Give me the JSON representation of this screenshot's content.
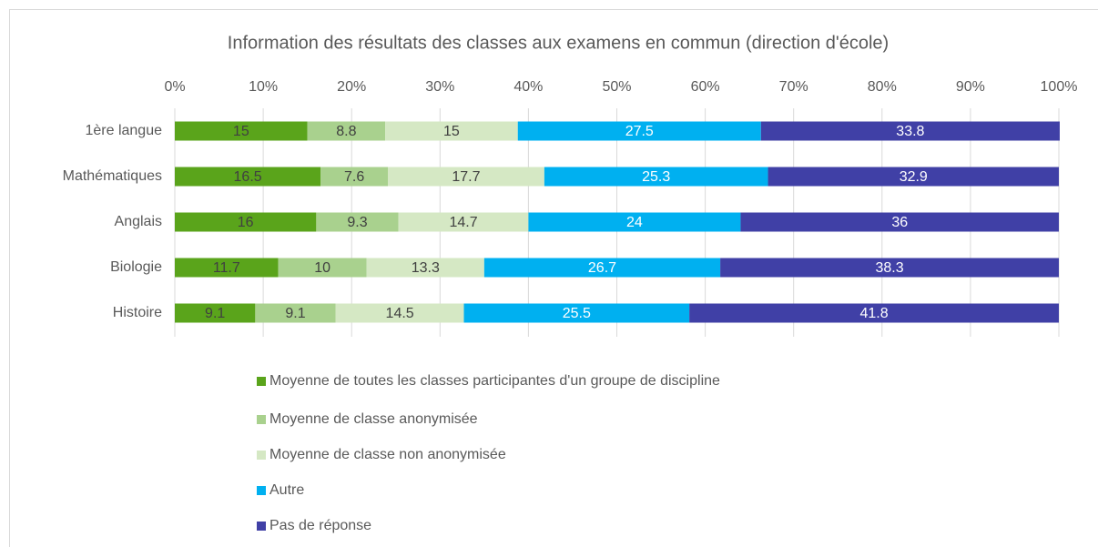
{
  "chart_data": {
    "type": "stacked_bar_horizontal",
    "title": "Information des résultats des classes aux examens en commun (direction d'école)",
    "categories": [
      "1ère langue",
      "Mathématiques",
      "Anglais",
      "Biologie",
      "Histoire"
    ],
    "series": [
      {
        "name": "Moyenne de toutes les classes participantes d'un groupe de discipline",
        "color": "#5aa41b",
        "values": [
          15,
          16.5,
          16,
          11.7,
          9.1
        ]
      },
      {
        "name": "Moyenne de classe anonymisée",
        "color": "#a9d18e",
        "values": [
          8.8,
          7.6,
          9.3,
          10,
          9.1
        ]
      },
      {
        "name": "Moyenne de classe non anonymisée",
        "color": "#d5e8c4",
        "values": [
          15,
          17.7,
          14.7,
          13.3,
          14.5
        ]
      },
      {
        "name": "Autre",
        "color": "#00b0f0",
        "values": [
          27.5,
          25.3,
          24,
          26.7,
          25.5
        ]
      },
      {
        "name": "Pas de réponse",
        "color": "#4040a6",
        "values": [
          33.8,
          32.9,
          36,
          38.3,
          41.8
        ]
      }
    ],
    "xlim": [
      0,
      100
    ],
    "xticks": [
      {
        "value": 0,
        "label": "0%"
      },
      {
        "value": 10,
        "label": "10%"
      },
      {
        "value": 20,
        "label": "20%"
      },
      {
        "value": 30,
        "label": "30%"
      },
      {
        "value": 40,
        "label": "40%"
      },
      {
        "value": 50,
        "label": "50%"
      },
      {
        "value": 60,
        "label": "60%"
      },
      {
        "value": 70,
        "label": "70%"
      },
      {
        "value": 80,
        "label": "80%"
      },
      {
        "value": 90,
        "label": "90%"
      },
      {
        "value": 100,
        "label": "100%"
      }
    ],
    "grid": true,
    "legend": "bottom"
  }
}
